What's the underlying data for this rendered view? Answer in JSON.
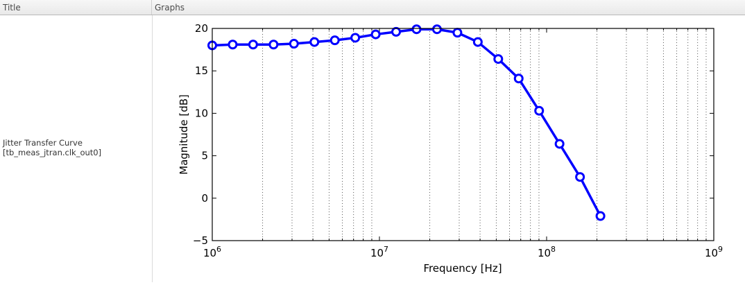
{
  "table": {
    "columns": [
      {
        "label": "Title"
      },
      {
        "label": "Graphs"
      }
    ],
    "rows": [
      {
        "title_line1": "Jitter Transfer Curve",
        "title_line2": "[tb_meas_jtran.clk_out0]"
      }
    ]
  },
  "colors": {
    "series": "#0000ff",
    "grid": "#555555",
    "axes": "#000000"
  },
  "chart_data": {
    "type": "line",
    "title": "",
    "xlabel": "Frequency [Hz]",
    "ylabel": "Magnitude [dB]",
    "xscale": "log",
    "xlim": [
      1000000,
      1000000000
    ],
    "ylim": [
      -5,
      20
    ],
    "xticks": [
      {
        "value": 1000000,
        "base": "10",
        "exp": "6"
      },
      {
        "value": 10000000,
        "base": "10",
        "exp": "7"
      },
      {
        "value": 100000000,
        "base": "10",
        "exp": "8"
      },
      {
        "value": 1000000000,
        "base": "10",
        "exp": "9"
      }
    ],
    "yticks": [
      -5,
      0,
      5,
      10,
      15,
      20
    ],
    "ytick_labels": [
      "−5",
      "0",
      "5",
      "10",
      "15",
      "20"
    ],
    "grid": "vertical minor dotted",
    "marker": "open circle",
    "series": [
      {
        "name": "Jitter Transfer Curve",
        "x": [
          1000000,
          1325000,
          1755000,
          2326000,
          3081000,
          4083000,
          5409000,
          7167000,
          9496000,
          12580000,
          16670000,
          22090000,
          29270000,
          38780000,
          51380000,
          68080000,
          90210000,
          119500000,
          158400000,
          209900000
        ],
        "values": [
          18.0,
          18.1,
          18.1,
          18.1,
          18.2,
          18.4,
          18.6,
          18.9,
          19.3,
          19.6,
          19.9,
          19.9,
          19.5,
          18.4,
          16.4,
          14.1,
          10.3,
          6.4,
          2.5,
          -2.1
        ]
      }
    ]
  }
}
